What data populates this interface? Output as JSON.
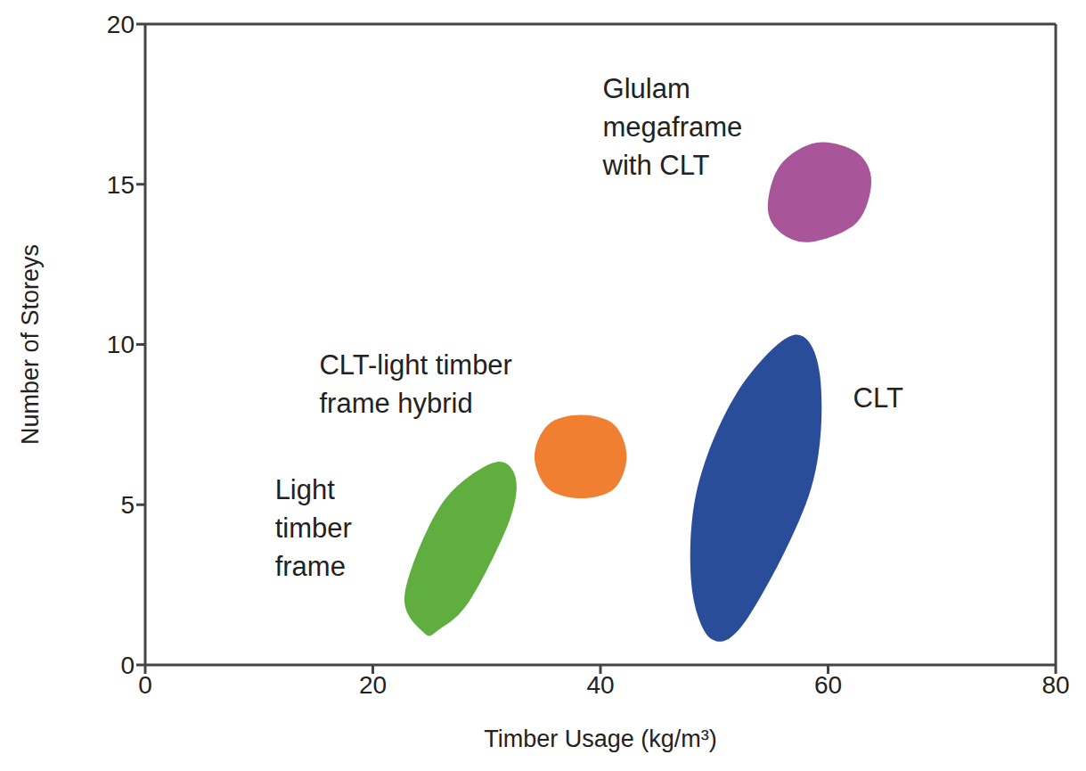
{
  "chart_data": {
    "type": "region",
    "xlabel": "Timber Usage (kg/m³)",
    "ylabel": "Number of Storeys",
    "xlim": [
      0,
      80
    ],
    "xticks": [
      0,
      20,
      40,
      60,
      80
    ],
    "ylim": [
      0,
      20
    ],
    "yticks": [
      0,
      5,
      10,
      15,
      20
    ],
    "grid": false,
    "series": [
      {
        "name": "Light\ntimber\nframe",
        "color": "#5fae3f",
        "x": [
          24.5,
          22.8,
          26,
          30.5,
          32.5,
          32,
          28.5,
          25.8
        ],
        "y": [
          1.0,
          2.2,
          5.0,
          6.3,
          5.9,
          4.5,
          2.0,
          1.1
        ]
      },
      {
        "name": "CLT-light timber\nframe hybrid",
        "color": "#f07f32",
        "x": [
          34.2,
          35.4,
          38.3,
          41.2,
          42.3,
          41.2,
          38.3,
          35.4
        ],
        "y": [
          6.5,
          7.5,
          7.8,
          7.5,
          6.5,
          5.5,
          5.2,
          5.5
        ]
      },
      {
        "name": "CLT",
        "color": "#2a4d9a",
        "x": [
          49.8,
          48,
          48.5,
          52,
          57,
          59.3,
          58.5,
          53
        ],
        "y": [
          0.8,
          2.5,
          5.5,
          8.5,
          10.3,
          9,
          5.5,
          1.5
        ]
      },
      {
        "name": "Glulam\nmegaframe\nwith CLT",
        "color": "#a8559a",
        "x": [
          54.7,
          55.8,
          59,
          62.5,
          63.8,
          62.5,
          58.5,
          55.8
        ],
        "y": [
          14.3,
          15.6,
          16.3,
          16,
          15.1,
          13.8,
          13.2,
          13.5
        ]
      }
    ]
  }
}
